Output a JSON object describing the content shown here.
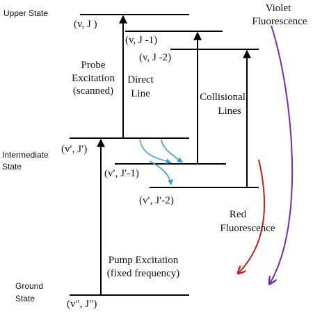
{
  "state_labels": {
    "upper": "Upper State",
    "intermediate_line1": "Intermediate",
    "intermediate_line2": "State",
    "ground_line1": "Ground",
    "ground_line2": "State"
  },
  "levels": {
    "upper_vJ": "(v, J )",
    "upper_vJm1": "(v, J -1)",
    "upper_vJm2": "(v, J -2)",
    "inter_vJ": "(v′, J′)",
    "inter_vJm1": "(v′, J′-1)",
    "inter_vJm2": "(v′, J′-2)",
    "ground_vJ": "(v″, J″)"
  },
  "transitions": {
    "probe_line1": "Probe",
    "probe_line2": "Excitation",
    "probe_line3": "(scanned)",
    "direct_line1": "Direct",
    "direct_line2": "Line",
    "collisional_line1": "Collisional",
    "collisional_line2": "Lines",
    "pump_line1": "Pump Excitation",
    "pump_line2": "(fixed frequency)"
  },
  "fluorescence": {
    "violet_line1": "Violet",
    "violet_line2": "Fluorescence",
    "violet_color": "#7a2aa8",
    "red_line1": "Red",
    "red_line2": "Fluorescence",
    "red_color": "#d11a1a"
  },
  "colors": {
    "line": "#000000",
    "collision_arrow": "#3a9ad9"
  }
}
